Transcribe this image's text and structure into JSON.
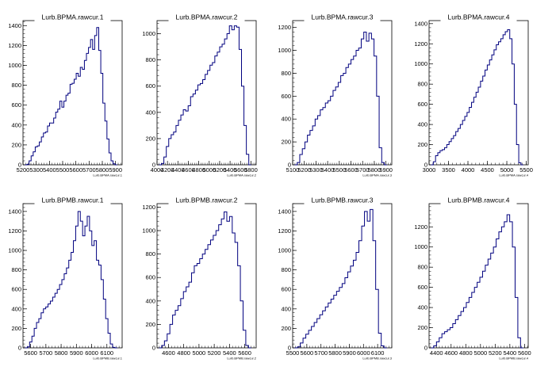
{
  "chart_data": [
    {
      "type": "histogram",
      "title": "Lurb.BPMA.rawcur.1",
      "xlabel": "Lurb.BPMA.rawcur.1",
      "xlim": [
        5200,
        5950
      ],
      "ylim": [
        0,
        1450
      ],
      "xticks": [
        {
          "v": 5200,
          "label": "5200"
        },
        {
          "v": 5300,
          "label": "5300"
        },
        {
          "v": 5400,
          "label": "5400"
        },
        {
          "v": 5500,
          "label": "5500"
        },
        {
          "v": 5600,
          "label": "5600"
        },
        {
          "v": 5700,
          "label": "5700"
        },
        {
          "v": 5800,
          "label": "5800"
        },
        {
          "v": 5900,
          "label": "5900"
        }
      ],
      "yticks": [
        0,
        200,
        400,
        600,
        800,
        1000,
        1200,
        1400
      ],
      "values": [
        0,
        5,
        40,
        90,
        130,
        180,
        190,
        230,
        280,
        320,
        330,
        390,
        420,
        420,
        470,
        530,
        560,
        640,
        580,
        640,
        700,
        720,
        810,
        820,
        860,
        920,
        890,
        980,
        960,
        1050,
        1120,
        1180,
        1260,
        1160,
        1300,
        1380,
        1150,
        920,
        620,
        440,
        260,
        120,
        40,
        10,
        0
      ]
    },
    {
      "type": "histogram",
      "title": "Lurb.BPMA.rawcur.2",
      "xlabel": "Lurb.BPMA.rawcur.2",
      "xlim": [
        4000,
        5900
      ],
      "ylim": [
        0,
        1100
      ],
      "xticks": [
        {
          "v": 4000,
          "label": "4000"
        },
        {
          "v": 4200,
          "label": "4200"
        },
        {
          "v": 4400,
          "label": "4400"
        },
        {
          "v": 4600,
          "label": "4600"
        },
        {
          "v": 4800,
          "label": "4800"
        },
        {
          "v": 5000,
          "label": "5000"
        },
        {
          "v": 5200,
          "label": "5200"
        },
        {
          "v": 5400,
          "label": "5400"
        },
        {
          "v": 5600,
          "label": "5600"
        },
        {
          "v": 5800,
          "label": "5800"
        }
      ],
      "yticks": [
        0,
        200,
        400,
        600,
        800,
        1000
      ],
      "values": [
        0,
        10,
        60,
        140,
        200,
        230,
        250,
        300,
        340,
        380,
        420,
        410,
        450,
        520,
        540,
        570,
        610,
        620,
        650,
        690,
        720,
        760,
        780,
        830,
        860,
        900,
        920,
        960,
        1000,
        1060,
        1030,
        1060,
        1050,
        880,
        600,
        300,
        80,
        0
      ]
    },
    {
      "type": "histogram",
      "title": "Lurb.BPMA.rawcur.3",
      "xlabel": "Lurb.BPMA.rawcur.3",
      "xlim": [
        5100,
        5950
      ],
      "ylim": [
        0,
        1260
      ],
      "xticks": [
        {
          "v": 5100,
          "label": "5100"
        },
        {
          "v": 5200,
          "label": "5200"
        },
        {
          "v": 5300,
          "label": "5300"
        },
        {
          "v": 5400,
          "label": "5400"
        },
        {
          "v": 5500,
          "label": "5500"
        },
        {
          "v": 5600,
          "label": "5600"
        },
        {
          "v": 5700,
          "label": "5700"
        },
        {
          "v": 5800,
          "label": "5800"
        },
        {
          "v": 5900,
          "label": "5900"
        }
      ],
      "yticks": [
        0,
        200,
        400,
        600,
        800,
        1000,
        1200
      ],
      "values": [
        0,
        20,
        90,
        140,
        200,
        260,
        300,
        340,
        400,
        430,
        480,
        500,
        540,
        560,
        600,
        650,
        680,
        720,
        780,
        800,
        850,
        880,
        920,
        950,
        1000,
        1020,
        1100,
        1160,
        1080,
        1150,
        1100,
        950,
        600,
        150,
        20,
        0
      ]
    },
    {
      "type": "histogram",
      "title": "Lurb.BPMA.rawcur.4",
      "xlabel": "Lurb.BPMA.rawcur.4",
      "xlim": [
        3000,
        5550
      ],
      "ylim": [
        0,
        1430
      ],
      "xticks": [
        {
          "v": 3000,
          "label": "3000"
        },
        {
          "v": 3500,
          "label": "3500"
        },
        {
          "v": 4000,
          "label": "4000"
        },
        {
          "v": 4500,
          "label": "4500"
        },
        {
          "v": 5000,
          "label": "5000"
        },
        {
          "v": 5500,
          "label": "5500"
        }
      ],
      "yticks": [
        0,
        200,
        400,
        600,
        800,
        1000,
        1200,
        1400
      ],
      "values": [
        0,
        30,
        90,
        120,
        140,
        150,
        170,
        200,
        230,
        260,
        290,
        330,
        360,
        400,
        440,
        480,
        520,
        570,
        620,
        670,
        720,
        770,
        830,
        880,
        940,
        990,
        1040,
        1090,
        1140,
        1190,
        1220,
        1250,
        1290,
        1320,
        1340,
        1250,
        1000,
        600,
        200,
        20,
        0
      ]
    },
    {
      "type": "histogram",
      "title": "Lurb.BPMB.rawcur.1",
      "xlabel": "Lurb.BPMB.rawcur.1",
      "xlim": [
        5550,
        6200
      ],
      "ylim": [
        0,
        1480
      ],
      "xticks": [
        {
          "v": 5600,
          "label": "5600"
        },
        {
          "v": 5700,
          "label": "5700"
        },
        {
          "v": 5800,
          "label": "5800"
        },
        {
          "v": 5900,
          "label": "5900"
        },
        {
          "v": 6000,
          "label": "6000"
        },
        {
          "v": 6100,
          "label": "6100"
        }
      ],
      "yticks": [
        0,
        200,
        400,
        600,
        800,
        1000,
        1200,
        1400
      ],
      "values": [
        0,
        10,
        60,
        120,
        200,
        260,
        300,
        360,
        400,
        420,
        450,
        480,
        520,
        560,
        600,
        650,
        700,
        760,
        820,
        900,
        980,
        1100,
        1250,
        1400,
        1300,
        1150,
        1250,
        1350,
        1200,
        1050,
        1100,
        900,
        850,
        700,
        500,
        300,
        150,
        40,
        5,
        0
      ]
    },
    {
      "type": "histogram",
      "title": "Lurb.BPMB.rawcur.2",
      "xlabel": "Lurb.BPMB.rawcur.2",
      "xlim": [
        4450,
        5750
      ],
      "ylim": [
        0,
        1230
      ],
      "xticks": [
        {
          "v": 4600,
          "label": "4600"
        },
        {
          "v": 4800,
          "label": "4800"
        },
        {
          "v": 5000,
          "label": "5000"
        },
        {
          "v": 5200,
          "label": "5200"
        },
        {
          "v": 5400,
          "label": "5400"
        },
        {
          "v": 5600,
          "label": "5600"
        }
      ],
      "yticks": [
        0,
        200,
        400,
        600,
        800,
        1000,
        1200
      ],
      "values": [
        0,
        20,
        60,
        120,
        200,
        280,
        320,
        360,
        420,
        480,
        520,
        560,
        640,
        700,
        720,
        760,
        800,
        840,
        880,
        920,
        960,
        1000,
        1050,
        1100,
        1160,
        1080,
        1120,
        980,
        900,
        700,
        400,
        150,
        20,
        0
      ]
    },
    {
      "type": "histogram",
      "title": "Lurb.BPMB.rawcur.3",
      "xlabel": "Lurb.BPMB.rawcur.3",
      "xlim": [
        5500,
        6200
      ],
      "ylim": [
        0,
        1480
      ],
      "xticks": [
        {
          "v": 5500,
          "label": "5500"
        },
        {
          "v": 5600,
          "label": "5600"
        },
        {
          "v": 5700,
          "label": "5700"
        },
        {
          "v": 5800,
          "label": "5800"
        },
        {
          "v": 5900,
          "label": "5900"
        },
        {
          "v": 6000,
          "label": "6000"
        },
        {
          "v": 6100,
          "label": "6100"
        }
      ],
      "yticks": [
        0,
        200,
        400,
        600,
        800,
        1000,
        1200,
        1400
      ],
      "values": [
        0,
        10,
        50,
        100,
        140,
        180,
        220,
        260,
        300,
        340,
        380,
        420,
        460,
        500,
        540,
        580,
        620,
        660,
        720,
        780,
        840,
        900,
        980,
        1100,
        1250,
        1400,
        1300,
        1420,
        1100,
        600,
        150,
        20,
        0
      ]
    },
    {
      "type": "histogram",
      "title": "Lurb.BPMB.rawcur.4",
      "xlabel": "Lurb.BPMB.rawcur.4",
      "xlim": [
        4300,
        5650
      ],
      "ylim": [
        0,
        1430
      ],
      "xticks": [
        {
          "v": 4400,
          "label": "4400"
        },
        {
          "v": 4600,
          "label": "4600"
        },
        {
          "v": 4800,
          "label": "4800"
        },
        {
          "v": 5000,
          "label": "5000"
        },
        {
          "v": 5200,
          "label": "5200"
        },
        {
          "v": 5400,
          "label": "5400"
        },
        {
          "v": 5600,
          "label": "5600"
        }
      ],
      "yticks": [
        0,
        200,
        400,
        600,
        800,
        1000,
        1200
      ],
      "values": [
        0,
        20,
        60,
        100,
        140,
        160,
        180,
        200,
        240,
        280,
        320,
        360,
        400,
        450,
        500,
        550,
        600,
        650,
        700,
        760,
        820,
        880,
        940,
        1000,
        1080,
        1150,
        1200,
        1250,
        1320,
        1250,
        1000,
        500,
        100,
        0
      ]
    }
  ],
  "colors": {
    "line": "#00007f",
    "axis": "#000000",
    "background": "#ffffff"
  }
}
